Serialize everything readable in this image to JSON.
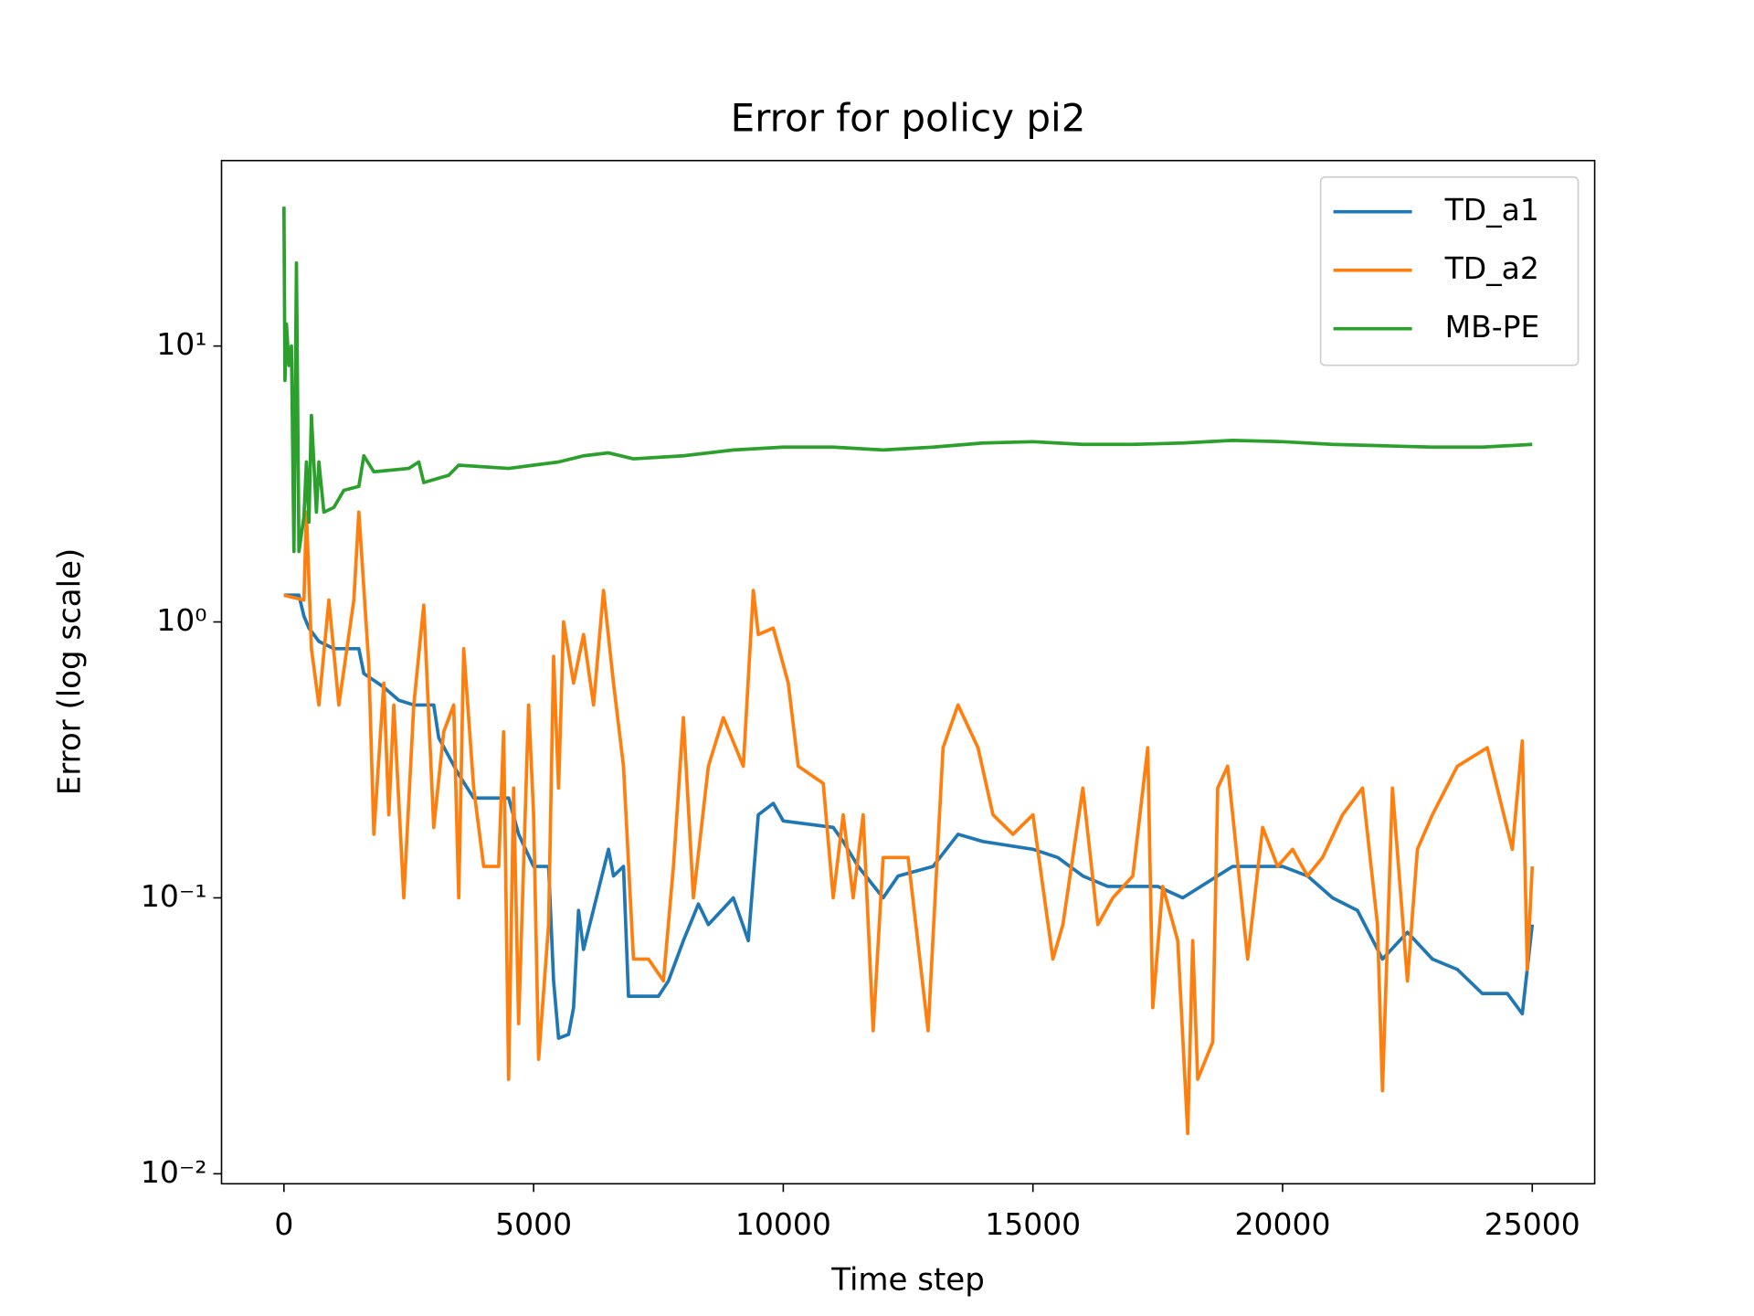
{
  "chart_data": {
    "type": "line",
    "title": "Error for policy pi2",
    "x_label": "Time step",
    "y_label": "Error (log scale)",
    "log_y": true,
    "legend": "upper right",
    "xlim": [
      -1250,
      26250
    ],
    "ylim": [
      0.0092,
      47
    ],
    "xticks": [
      0,
      5000,
      10000,
      15000,
      20000,
      25000
    ],
    "yticks": [
      {
        "value": 0.01,
        "label": "10⁻²"
      },
      {
        "value": 0.1,
        "label": "10⁻¹"
      },
      {
        "value": 1,
        "label": "10⁰"
      },
      {
        "value": 10,
        "label": "10¹"
      }
    ],
    "series": [
      {
        "name": "TD_a1",
        "color": "#1f77b4",
        "x": [
          0,
          300,
          400,
          500,
          700,
          1000,
          1500,
          1600,
          2000,
          2300,
          2600,
          3000,
          3100,
          3500,
          3800,
          4500,
          4700,
          5000,
          5300,
          5400,
          5500,
          5700,
          5800,
          5900,
          6000,
          6500,
          6600,
          6800,
          6900,
          7500,
          7700,
          8000,
          8300,
          8500,
          9000,
          9300,
          9500,
          9800,
          10000,
          11000,
          11200,
          11500,
          12000,
          12300,
          13000,
          13500,
          14000,
          15000,
          15500,
          16000,
          16500,
          17500,
          18000,
          19000,
          20000,
          20500,
          21000,
          21500,
          22000,
          22500,
          23000,
          23500,
          24000,
          24500,
          24800,
          25000
        ],
        "values": [
          1.25,
          1.25,
          1.05,
          0.95,
          0.85,
          0.8,
          0.8,
          0.65,
          0.58,
          0.52,
          0.5,
          0.5,
          0.38,
          0.28,
          0.23,
          0.23,
          0.17,
          0.13,
          0.13,
          0.05,
          0.031,
          0.032,
          0.04,
          0.09,
          0.065,
          0.15,
          0.12,
          0.13,
          0.044,
          0.044,
          0.05,
          0.07,
          0.095,
          0.08,
          0.1,
          0.07,
          0.2,
          0.22,
          0.19,
          0.18,
          0.16,
          0.13,
          0.1,
          0.12,
          0.13,
          0.17,
          0.16,
          0.15,
          0.14,
          0.12,
          0.11,
          0.11,
          0.1,
          0.13,
          0.13,
          0.12,
          0.1,
          0.09,
          0.06,
          0.075,
          0.06,
          0.055,
          0.045,
          0.045,
          0.038,
          0.08
        ]
      },
      {
        "name": "TD_a2",
        "color": "#ff7f0e",
        "x": [
          0,
          400,
          450,
          550,
          700,
          900,
          1100,
          1400,
          1500,
          1700,
          1800,
          2000,
          2100,
          2200,
          2400,
          2600,
          2800,
          3000,
          3200,
          3400,
          3500,
          3600,
          3800,
          4000,
          4300,
          4400,
          4500,
          4600,
          4700,
          4900,
          5000,
          5100,
          5300,
          5400,
          5500,
          5600,
          5800,
          6000,
          6200,
          6400,
          6600,
          6800,
          7000,
          7300,
          7600,
          7800,
          8000,
          8200,
          8500,
          8800,
          9200,
          9400,
          9500,
          9800,
          10100,
          10300,
          10800,
          11000,
          11200,
          11400,
          11600,
          11800,
          12000,
          12500,
          12900,
          13200,
          13500,
          13900,
          14200,
          14600,
          15000,
          15400,
          15600,
          16000,
          16300,
          16600,
          17000,
          17300,
          17400,
          17600,
          17900,
          18100,
          18200,
          18300,
          18600,
          18700,
          18900,
          19300,
          19600,
          19900,
          20200,
          20500,
          20800,
          21200,
          21600,
          21900,
          22000,
          22200,
          22500,
          22700,
          23000,
          23500,
          24100,
          24600,
          24800,
          24900,
          25000
        ],
        "values": [
          1.25,
          1.2,
          2.5,
          0.8,
          0.5,
          1.2,
          0.5,
          1.2,
          2.5,
          0.7,
          0.17,
          0.6,
          0.2,
          0.5,
          0.1,
          0.5,
          1.15,
          0.18,
          0.4,
          0.5,
          0.1,
          0.8,
          0.25,
          0.13,
          0.13,
          0.4,
          0.022,
          0.25,
          0.035,
          0.5,
          0.2,
          0.026,
          0.08,
          0.75,
          0.25,
          1.0,
          0.6,
          0.9,
          0.5,
          1.3,
          0.6,
          0.3,
          0.06,
          0.06,
          0.05,
          0.13,
          0.45,
          0.1,
          0.3,
          0.45,
          0.3,
          1.3,
          0.9,
          0.95,
          0.6,
          0.3,
          0.26,
          0.1,
          0.2,
          0.1,
          0.2,
          0.033,
          0.14,
          0.14,
          0.033,
          0.35,
          0.5,
          0.35,
          0.2,
          0.17,
          0.2,
          0.06,
          0.08,
          0.25,
          0.08,
          0.1,
          0.12,
          0.35,
          0.04,
          0.11,
          0.07,
          0.014,
          0.07,
          0.022,
          0.03,
          0.25,
          0.3,
          0.06,
          0.18,
          0.13,
          0.15,
          0.12,
          0.14,
          0.2,
          0.25,
          0.08,
          0.02,
          0.25,
          0.05,
          0.15,
          0.2,
          0.3,
          0.35,
          0.15,
          0.37,
          0.055,
          0.13
        ]
      },
      {
        "name": "MB-PE",
        "color": "#2ca02c",
        "x": [
          0,
          20,
          50,
          100,
          150,
          200,
          250,
          300,
          400,
          450,
          500,
          550,
          650,
          700,
          800,
          1000,
          1200,
          1500,
          1600,
          1800,
          2500,
          2700,
          2800,
          3300,
          3500,
          4500,
          5000,
          5500,
          6000,
          6500,
          7000,
          8000,
          9000,
          10000,
          11000,
          12000,
          13000,
          14000,
          15000,
          16000,
          17000,
          18000,
          19000,
          20000,
          21000,
          22000,
          23000,
          24000,
          25000
        ],
        "values": [
          32,
          7.5,
          12,
          8.5,
          10,
          1.8,
          20,
          1.8,
          2.4,
          3.8,
          2.3,
          5.6,
          2.5,
          3.8,
          2.5,
          2.6,
          3.0,
          3.1,
          4.0,
          3.5,
          3.6,
          3.8,
          3.2,
          3.4,
          3.7,
          3.6,
          3.7,
          3.8,
          4.0,
          4.1,
          3.9,
          4.0,
          4.2,
          4.3,
          4.3,
          4.2,
          4.3,
          4.45,
          4.5,
          4.4,
          4.4,
          4.45,
          4.55,
          4.5,
          4.4,
          4.35,
          4.3,
          4.3,
          4.4
        ]
      }
    ]
  }
}
